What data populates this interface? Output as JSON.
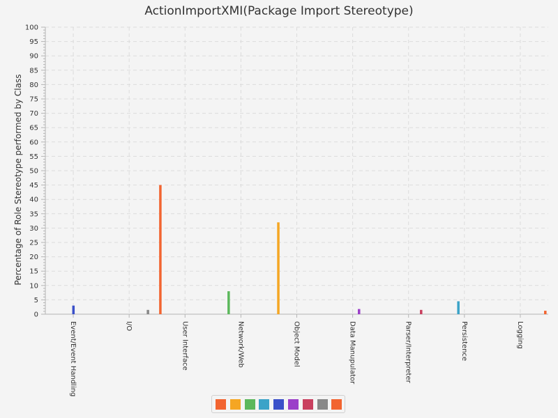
{
  "chart_data": {
    "type": "bar",
    "title": "ActionImportXMI(Package Import Stereotype)",
    "xlabel": "",
    "ylabel": "Percentage of Role Stereotype performed by Class",
    "ylim": [
      0,
      100
    ],
    "ytick_step": 5,
    "grid": true,
    "legend_placement": "bottom",
    "categories": [
      "Event/Event Handling",
      "I/O",
      "User Interface",
      "Network/Web",
      "Object Model",
      "Data Manupulator",
      "Parser/Interpreter",
      "Persistence",
      "Logging"
    ],
    "series": [
      {
        "color": "#f26430",
        "values": [
          0,
          0,
          45,
          0,
          0,
          0,
          0,
          0,
          0
        ]
      },
      {
        "color": "#f5a623",
        "values": [
          0,
          0,
          0,
          0,
          32,
          0,
          0,
          0,
          0
        ]
      },
      {
        "color": "#5cb85c",
        "values": [
          0,
          0,
          0,
          8,
          0,
          0,
          0,
          0,
          0
        ]
      },
      {
        "color": "#3ba3c8",
        "values": [
          0,
          0,
          0,
          0,
          0,
          0,
          0,
          4.5,
          0
        ]
      },
      {
        "color": "#3a50c9",
        "values": [
          3,
          0,
          0,
          0,
          0,
          0,
          0,
          0,
          0
        ]
      },
      {
        "color": "#9b3fc9",
        "values": [
          0,
          0,
          0,
          0,
          0,
          1.8,
          0,
          0,
          0
        ]
      },
      {
        "color": "#c9405f",
        "values": [
          0,
          0,
          0,
          0,
          0,
          0,
          1.5,
          0,
          0
        ]
      },
      {
        "color": "#888888",
        "values": [
          0,
          1.5,
          0,
          0,
          0,
          0,
          0,
          0,
          0
        ]
      },
      {
        "color": "#f26430",
        "values": [
          0,
          0,
          0,
          0,
          0,
          0,
          0,
          0,
          1.2
        ]
      }
    ]
  }
}
